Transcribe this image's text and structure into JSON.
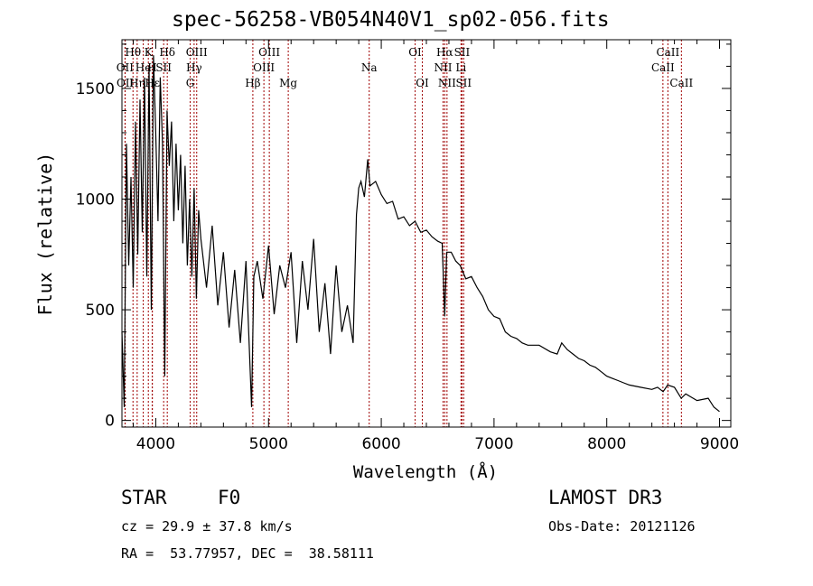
{
  "chart_data": {
    "type": "line",
    "title": "spec-56258-VB054N40V1_sp02-056.fits",
    "xlabel": "Wavelength (Å)",
    "ylabel": "Flux (relative)",
    "xlim": [
      3700,
      9100
    ],
    "ylim": [
      -30,
      1720
    ],
    "x_ticks": [
      4000,
      5000,
      6000,
      7000,
      8000,
      9000
    ],
    "y_ticks": [
      0,
      500,
      1000,
      1500
    ],
    "series": [
      {
        "name": "spectrum",
        "x": [
          3700,
          3720,
          3740,
          3760,
          3780,
          3800,
          3820,
          3840,
          3860,
          3880,
          3900,
          3920,
          3940,
          3960,
          3980,
          4000,
          4020,
          4040,
          4060,
          4080,
          4100,
          4120,
          4140,
          4160,
          4180,
          4200,
          4220,
          4240,
          4260,
          4280,
          4300,
          4320,
          4340,
          4360,
          4380,
          4400,
          4450,
          4500,
          4550,
          4600,
          4650,
          4700,
          4750,
          4800,
          4850,
          4870,
          4900,
          4950,
          5000,
          5050,
          5100,
          5150,
          5200,
          5250,
          5300,
          5350,
          5400,
          5450,
          5500,
          5550,
          5600,
          5650,
          5700,
          5750,
          5780,
          5800,
          5820,
          5850,
          5880,
          5900,
          5950,
          6000,
          6050,
          6100,
          6150,
          6200,
          6250,
          6300,
          6350,
          6400,
          6450,
          6500,
          6540,
          6563,
          6580,
          6620,
          6660,
          6700,
          6750,
          6800,
          6850,
          6900,
          6950,
          7000,
          7050,
          7100,
          7150,
          7200,
          7250,
          7300,
          7400,
          7500,
          7560,
          7600,
          7650,
          7700,
          7750,
          7800,
          7850,
          7900,
          7950,
          8000,
          8050,
          8100,
          8150,
          8200,
          8300,
          8400,
          8450,
          8500,
          8540,
          8600,
          8660,
          8700,
          8800,
          8900,
          8950,
          9000
        ],
        "y": [
          400,
          60,
          1250,
          700,
          1100,
          600,
          1350,
          750,
          1450,
          850,
          1550,
          650,
          1600,
          500,
          1650,
          1300,
          900,
          1550,
          1250,
          200,
          1400,
          1150,
          1350,
          900,
          1250,
          950,
          1200,
          800,
          1150,
          700,
          1000,
          650,
          1050,
          550,
          950,
          820,
          600,
          880,
          520,
          760,
          420,
          680,
          350,
          720,
          60,
          650,
          720,
          550,
          790,
          480,
          700,
          600,
          760,
          350,
          720,
          500,
          820,
          400,
          620,
          300,
          700,
          400,
          520,
          350,
          930,
          1050,
          1080,
          1010,
          1180,
          1060,
          1080,
          1020,
          980,
          990,
          910,
          920,
          880,
          900,
          850,
          860,
          830,
          810,
          800,
          470,
          760,
          760,
          720,
          700,
          640,
          650,
          600,
          560,
          500,
          470,
          460,
          400,
          380,
          370,
          350,
          340,
          340,
          310,
          300,
          350,
          320,
          300,
          280,
          270,
          250,
          240,
          220,
          200,
          190,
          180,
          170,
          160,
          150,
          140,
          150,
          130,
          160,
          150,
          100,
          120,
          90,
          100,
          60,
          40
        ]
      }
    ],
    "lines": [
      {
        "name": "Hθ",
        "x": 3798,
        "row": 1
      },
      {
        "name": "OII",
        "x": 3727,
        "row": 2
      },
      {
        "name": "OII",
        "x": 3729,
        "row": 3
      },
      {
        "name": "Hη",
        "x": 3835,
        "row": 3
      },
      {
        "name": "K",
        "x": 3934,
        "row": 1
      },
      {
        "name": "He",
        "x": 3889,
        "row": 2
      },
      {
        "name": "Hε",
        "x": 3970,
        "row": 3
      },
      {
        "name": "H",
        "x": 3968,
        "row": 2
      },
      {
        "name": "SII",
        "x": 4070,
        "row": 2
      },
      {
        "name": "Hδ",
        "x": 4102,
        "row": 1
      },
      {
        "name": "OIII",
        "x": 4363,
        "row": 1
      },
      {
        "name": "Hγ",
        "x": 4340,
        "row": 2
      },
      {
        "name": "G",
        "x": 4305,
        "row": 3
      },
      {
        "name": "Hβ",
        "x": 4861,
        "row": 3
      },
      {
        "name": "OIII",
        "x": 5007,
        "row": 1
      },
      {
        "name": "OIII",
        "x": 4959,
        "row": 2
      },
      {
        "name": "Mg",
        "x": 5175,
        "row": 3
      },
      {
        "name": "Na",
        "x": 5893,
        "row": 2
      },
      {
        "name": "OI",
        "x": 6300,
        "row": 1
      },
      {
        "name": "OI",
        "x": 6364,
        "row": 3
      },
      {
        "name": "Hα",
        "x": 6563,
        "row": 1
      },
      {
        "name": "SII",
        "x": 6716,
        "row": 1
      },
      {
        "name": "NII",
        "x": 6548,
        "row": 2
      },
      {
        "name": "Li",
        "x": 6707,
        "row": 2
      },
      {
        "name": "NII",
        "x": 6583,
        "row": 3
      },
      {
        "name": "SII",
        "x": 6731,
        "row": 3
      },
      {
        "name": "CaII",
        "x": 8542,
        "row": 1
      },
      {
        "name": "CaII",
        "x": 8498,
        "row": 2
      },
      {
        "name": "CaII",
        "x": 8662,
        "row": 3
      }
    ]
  },
  "info": {
    "class_label": "STAR",
    "subclass": "F0",
    "survey": "LAMOST DR3",
    "cz_line": "cz = 29.9 ± 37.8 km/s",
    "obs_date": "Obs-Date: 20121126",
    "radec": "RA =  53.77957, DEC =  38.58111"
  }
}
